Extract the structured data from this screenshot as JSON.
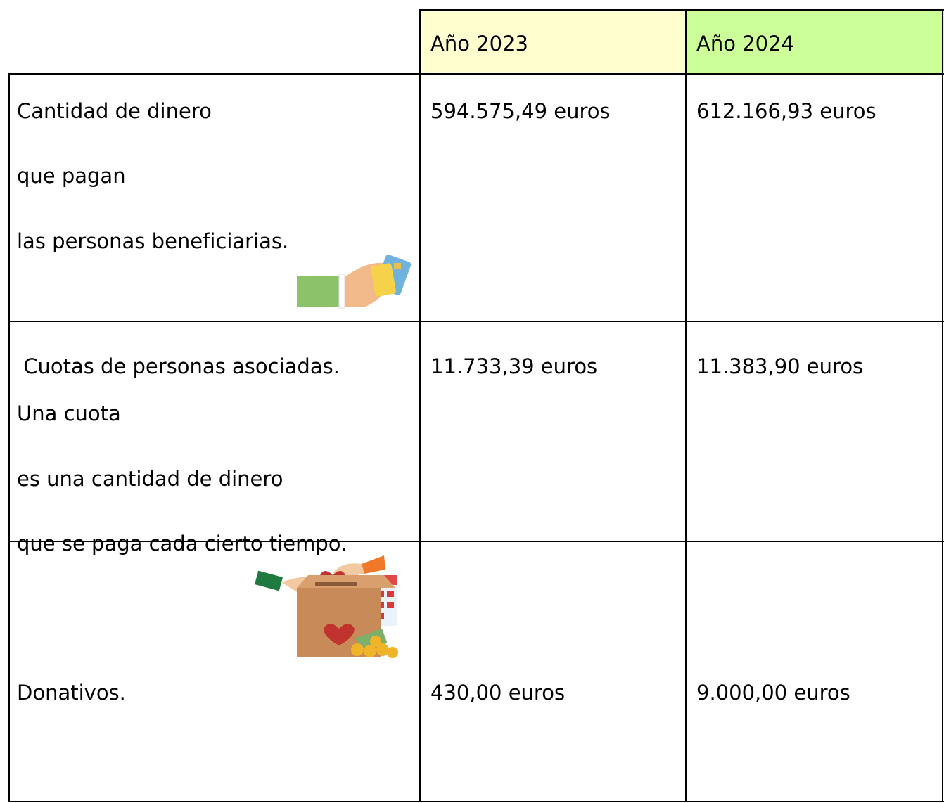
{
  "table": {
    "header": [
      "Año 2023",
      "Año 2024"
    ],
    "rows": [
      {
        "label_lines": [
          "Cantidad de dinero",
          "que pagan",
          "las personas beneficiarias."
        ],
        "values": [
          "594.575,49 euros",
          "612.166,93 euros"
        ]
      },
      {
        "label_lines": [
          " Cuotas de personas asociadas.",
          "Una cuota",
          "es una cantidad de dinero",
          "que se paga cada cierto tiempo."
        ],
        "values": [
          "11.733,39 euros",
          "11.383,90 euros"
        ]
      },
      {
        "label_lines": [
          "Donativos."
        ],
        "values": [
          "430,00 euros",
          "9.000,00 euros"
        ]
      }
    ]
  }
}
